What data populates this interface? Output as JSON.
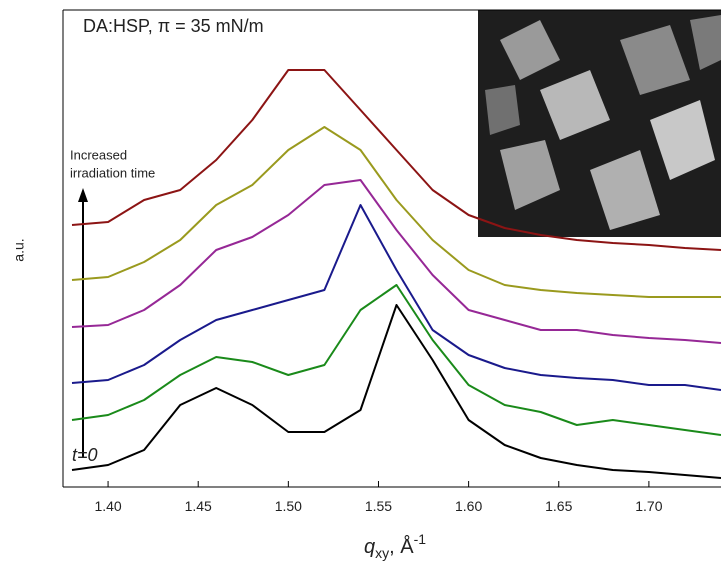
{
  "chart_data": {
    "type": "line",
    "annotation": "DA:HSP, π = 35 mN/m",
    "arrow_label": [
      "Increased",
      "irradiation time"
    ],
    "start_label": "t=0",
    "y_label": "a.u.",
    "x_label": {
      "base": "q",
      "sub": "xy",
      "rest": ", Å",
      "sup": "-1"
    },
    "x": [
      1.38,
      1.4,
      1.42,
      1.44,
      1.46,
      1.48,
      1.5,
      1.52,
      1.54,
      1.56,
      1.58,
      1.6,
      1.62,
      1.64,
      1.66,
      1.68,
      1.7,
      1.72,
      1.74
    ],
    "xlim": [
      1.375,
      1.74
    ],
    "xticks": [
      {
        "value": 1.4,
        "label": "1.40"
      },
      {
        "value": 1.45,
        "label": "1.45"
      },
      {
        "value": 1.5,
        "label": "1.50"
      },
      {
        "value": 1.55,
        "label": "1.55"
      },
      {
        "value": 1.6,
        "label": "1.60"
      },
      {
        "value": 1.65,
        "label": "1.65"
      },
      {
        "value": 1.7,
        "label": "1.70"
      }
    ],
    "ylim": [
      0,
      477
    ],
    "series": [
      {
        "color": "#000000",
        "values": [
          17,
          22,
          37,
          82,
          99,
          82,
          55,
          55,
          77,
          182,
          127,
          67,
          42,
          29,
          22,
          17,
          15,
          12,
          9
        ]
      },
      {
        "color": "#1a8a1a",
        "values": [
          67,
          72,
          87,
          112,
          130,
          125,
          112,
          122,
          177,
          202,
          147,
          102,
          82,
          75,
          62,
          67,
          62,
          57,
          52
        ]
      },
      {
        "color": "#1a1a8c",
        "values": [
          104,
          107,
          122,
          147,
          167,
          177,
          187,
          197,
          282,
          217,
          157,
          132,
          119,
          112,
          109,
          107,
          102,
          102,
          97
        ]
      },
      {
        "color": "#962896",
        "values": [
          160,
          162,
          177,
          202,
          237,
          250,
          272,
          302,
          307,
          257,
          212,
          177,
          167,
          157,
          157,
          152,
          149,
          147,
          144
        ]
      },
      {
        "color": "#9a9a1e",
        "values": [
          207,
          210,
          225,
          247,
          282,
          302,
          337,
          360,
          337,
          287,
          247,
          217,
          202,
          197,
          194,
          192,
          190,
          190,
          190
        ]
      },
      {
        "color": "#8c1414",
        "values": [
          262,
          265,
          287,
          297,
          327,
          367,
          417,
          417,
          377,
          337,
          297,
          272,
          259,
          252,
          247,
          244,
          242,
          239,
          237
        ]
      }
    ]
  }
}
